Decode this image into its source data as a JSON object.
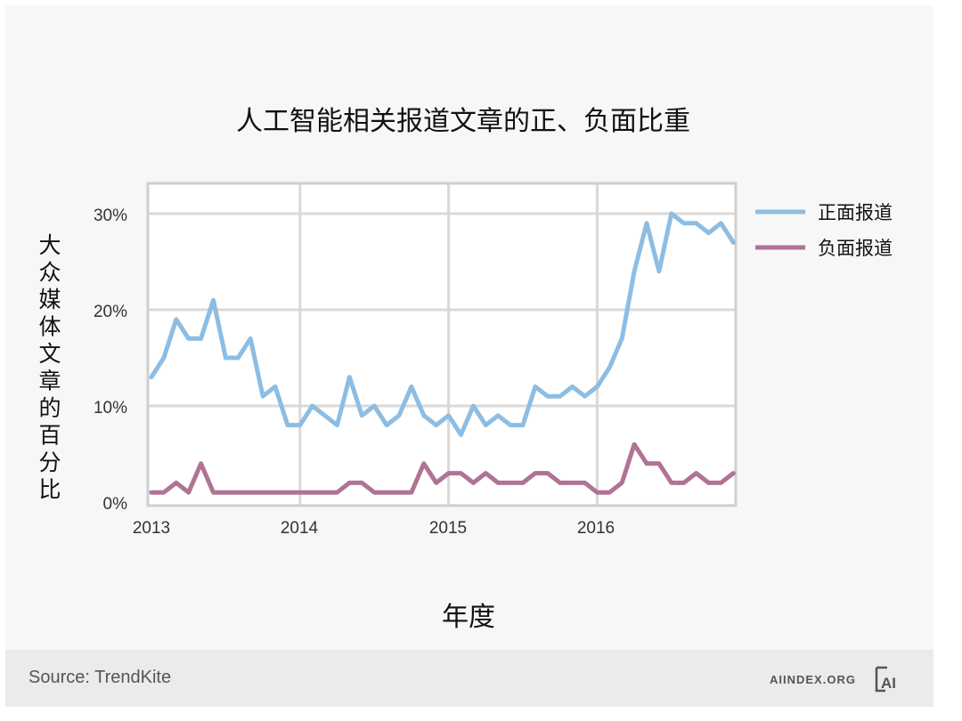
{
  "chart_data": {
    "type": "line",
    "title": "人工智能相关报道文章的正、负面比重",
    "xlabel": "年度",
    "ylabel": "大众媒体文章的百分比",
    "x_ticks": [
      "2013",
      "2014",
      "2015",
      "2016"
    ],
    "y_ticks": [
      "0%",
      "10%",
      "20%",
      "30%"
    ],
    "ylim": [
      0,
      33
    ],
    "grid": true,
    "legend_position": "right",
    "x": [
      "2013-01",
      "2013-02",
      "2013-03",
      "2013-04",
      "2013-05",
      "2013-06",
      "2013-07",
      "2013-08",
      "2013-09",
      "2013-10",
      "2013-11",
      "2013-12",
      "2014-01",
      "2014-02",
      "2014-03",
      "2014-04",
      "2014-05",
      "2014-06",
      "2014-07",
      "2014-08",
      "2014-09",
      "2014-10",
      "2014-11",
      "2014-12",
      "2015-01",
      "2015-02",
      "2015-03",
      "2015-04",
      "2015-05",
      "2015-06",
      "2015-07",
      "2015-08",
      "2015-09",
      "2015-10",
      "2015-11",
      "2015-12",
      "2016-01",
      "2016-02",
      "2016-03",
      "2016-04",
      "2016-05",
      "2016-06",
      "2016-07",
      "2016-08",
      "2016-09",
      "2016-10",
      "2016-11",
      "2016-12"
    ],
    "series": [
      {
        "name": "正面报道",
        "color": "#8dbde3",
        "values": [
          13,
          15,
          19,
          17,
          17,
          21,
          15,
          15,
          17,
          11,
          12,
          8,
          8,
          10,
          9,
          8,
          13,
          9,
          10,
          8,
          9,
          12,
          9,
          8,
          9,
          7,
          10,
          8,
          9,
          8,
          8,
          12,
          11,
          11,
          12,
          11,
          12,
          14,
          17,
          24,
          29,
          24,
          30,
          29,
          29,
          28,
          29,
          27
        ]
      },
      {
        "name": "负面报道",
        "color": "#b07394",
        "values": [
          1,
          1,
          2,
          1,
          4,
          1,
          1,
          1,
          1,
          1,
          1,
          1,
          1,
          1,
          1,
          1,
          2,
          2,
          1,
          1,
          1,
          1,
          4,
          2,
          3,
          3,
          2,
          3,
          2,
          2,
          2,
          3,
          3,
          2,
          2,
          2,
          1,
          1,
          2,
          6,
          4,
          4,
          2,
          2,
          3,
          2,
          2,
          3
        ]
      }
    ]
  },
  "footer": {
    "source": "Source: TrendKite",
    "brand": "AIINDEX.ORG",
    "logo_text": "AI"
  },
  "colors": {
    "positive": "#8dbde3",
    "negative": "#b07394",
    "grid": "#d9d9d9",
    "frame": "#cfcfcf"
  }
}
